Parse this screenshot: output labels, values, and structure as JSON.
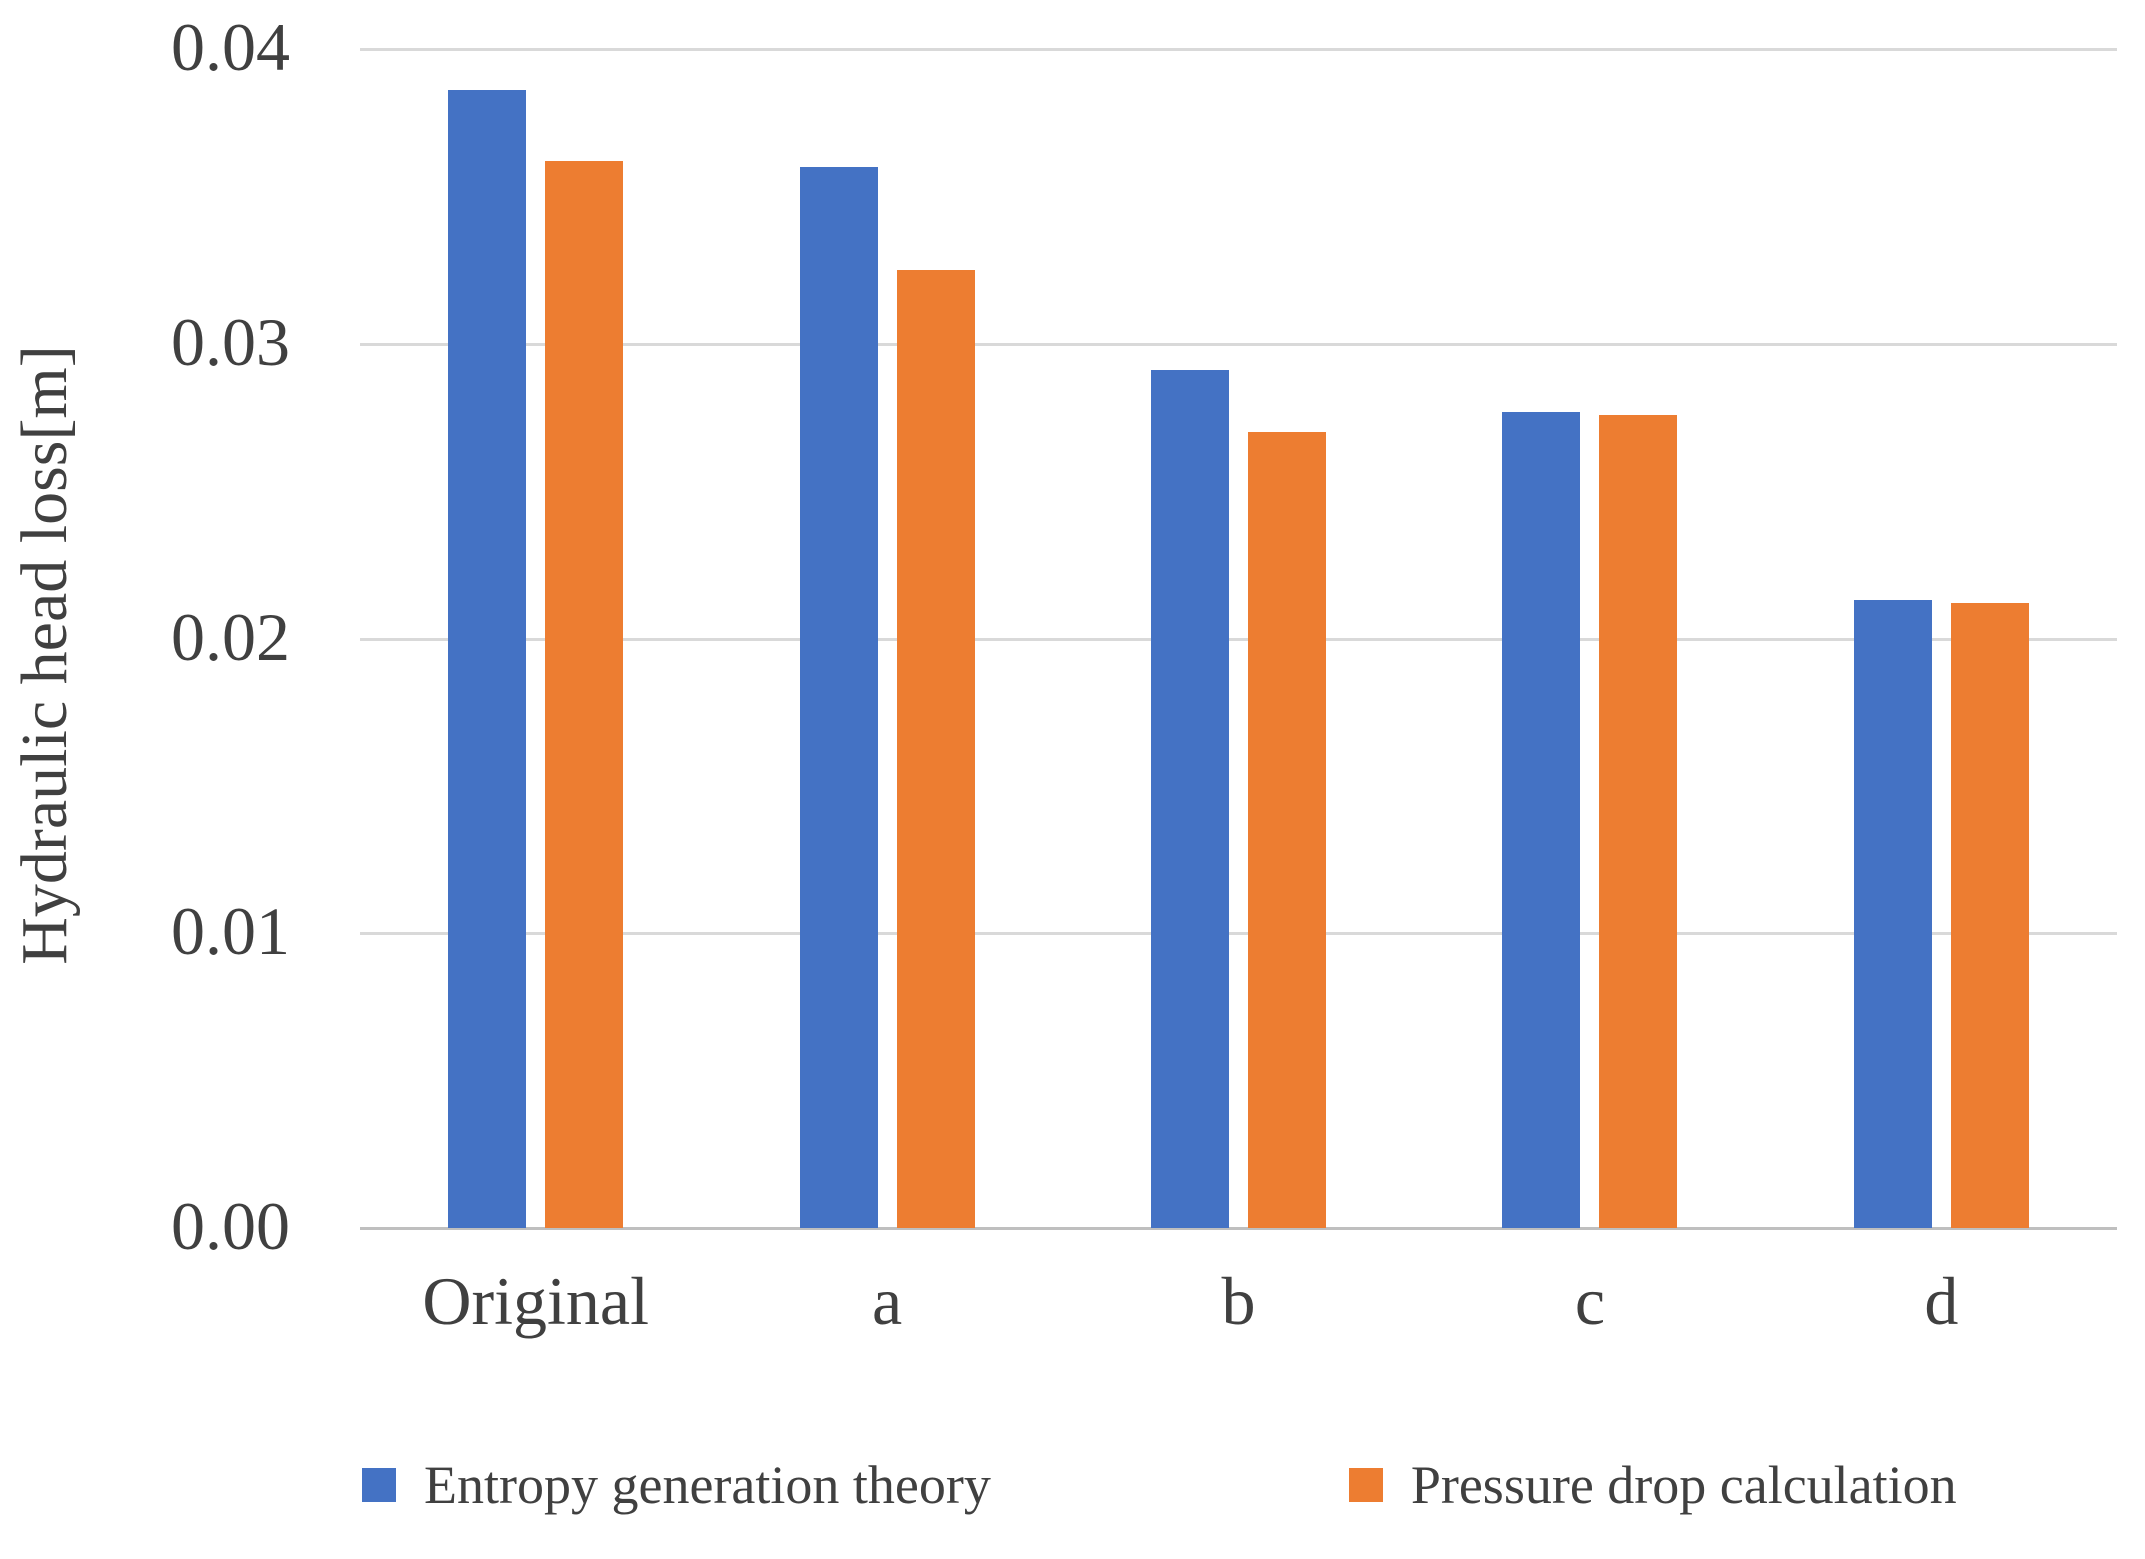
{
  "chart_data": {
    "type": "bar",
    "title": "",
    "xlabel": "",
    "ylabel": "Hydraulic head loss[m]",
    "categories": [
      "Original",
      "a",
      "b",
      "c",
      "d"
    ],
    "series": [
      {
        "name": "Entropy generation theory",
        "color": "#4472c4",
        "values": [
          0.0386,
          0.036,
          0.0291,
          0.0277,
          0.0213
        ]
      },
      {
        "name": "Pressure drop calculation",
        "color": "#ed7d31",
        "values": [
          0.0362,
          0.0325,
          0.027,
          0.0276,
          0.0212
        ]
      }
    ],
    "ylim": [
      0,
      0.04
    ],
    "yticks": [
      {
        "value": 0.04,
        "label": "0.04"
      },
      {
        "value": 0.03,
        "label": "0.03"
      },
      {
        "value": 0.02,
        "label": "0.02"
      },
      {
        "value": 0.01,
        "label": "0.01"
      },
      {
        "value": 0.0,
        "label": "0.00"
      }
    ],
    "grid": true,
    "legend_position": "bottom"
  },
  "colors": {
    "gridline": "#d9d9d9",
    "baseline": "#bfbfbf",
    "text": "#404040",
    "background": "#ffffff"
  }
}
